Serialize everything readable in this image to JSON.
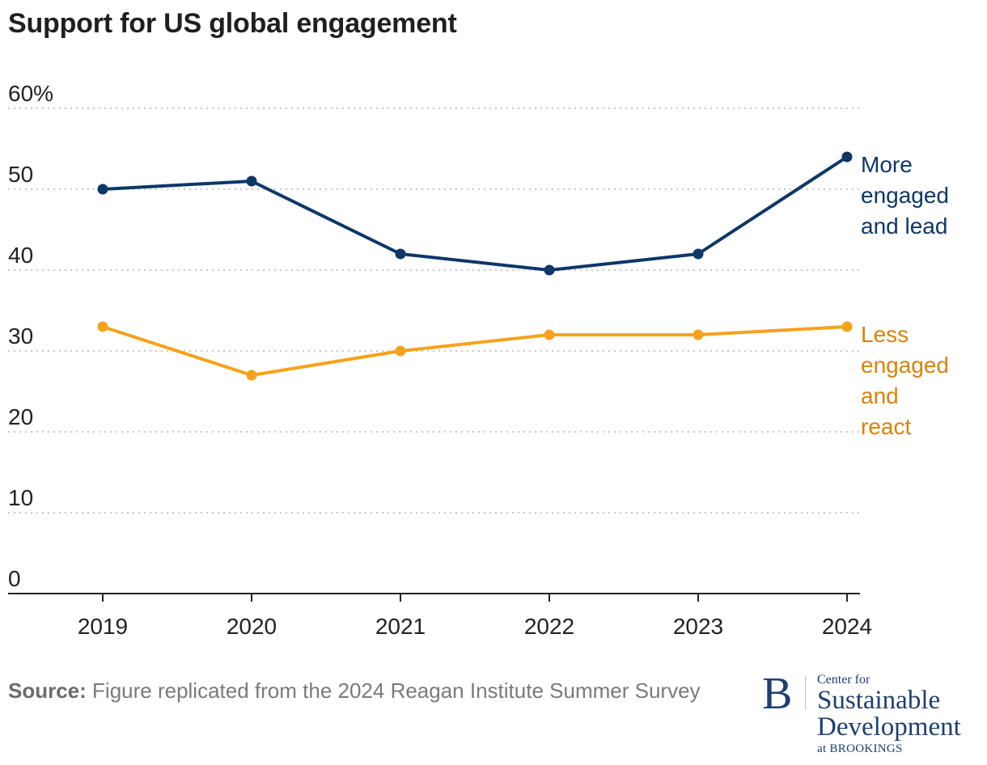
{
  "chart_data": {
    "type": "line",
    "title": "Support for US global engagement",
    "x": [
      "2019",
      "2020",
      "2021",
      "2022",
      "2023",
      "2024"
    ],
    "ylim": [
      0,
      60
    ],
    "yticks": [
      "0",
      "10",
      "20",
      "30",
      "40",
      "50",
      "60%"
    ],
    "yticks_values": [
      0,
      10,
      20,
      30,
      40,
      50,
      60
    ],
    "grid": true,
    "series": [
      {
        "name": "More engaged and lead",
        "label_lines": [
          "More",
          "engaged",
          "and lead"
        ],
        "color": "#0d3768",
        "label_color": "#0d3768",
        "values": [
          50,
          51,
          42,
          40,
          42,
          54
        ]
      },
      {
        "name": "Less engaged and react",
        "label_lines": [
          "Less",
          "engaged",
          "and",
          "react"
        ],
        "color": "#f7a21b",
        "label_color": "#d98207",
        "values": [
          33,
          27,
          30,
          32,
          32,
          33
        ]
      }
    ]
  },
  "source": {
    "label": "Source:",
    "text": " Figure replicated from the 2024 Reagan Institute Summer Survey"
  },
  "logo": {
    "letter": "B",
    "line_small": "Center for",
    "line_1": "Sustainable",
    "line_2": "Development",
    "line_at": "at BROOKINGS"
  }
}
